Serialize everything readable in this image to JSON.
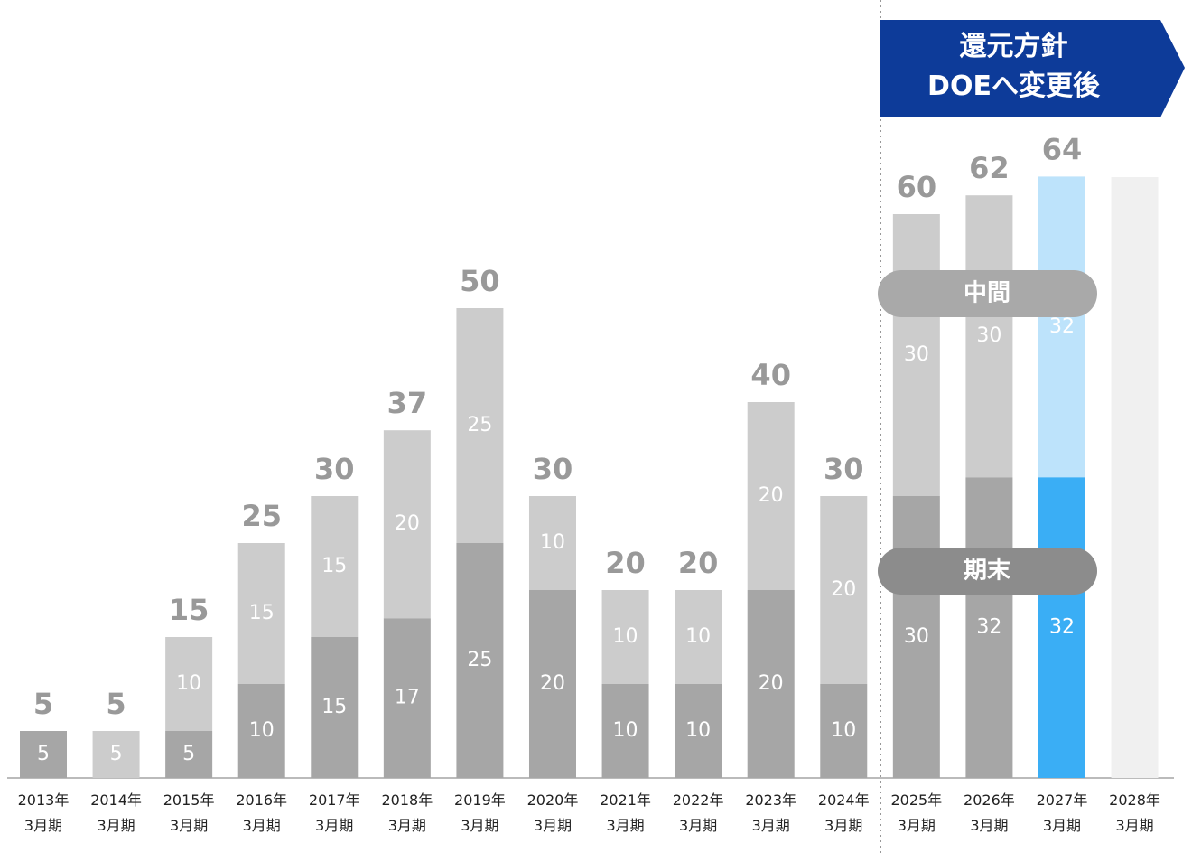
{
  "chart_data": {
    "type": "stacked-bar",
    "categories": [
      "2013年\n3月期",
      "2014年\n3月期",
      "2015年\n3月期",
      "2016年\n3月期",
      "2017年\n3月期",
      "2018年\n3月期",
      "2019年\n3月期",
      "2020年\n3月期",
      "2021年\n3月期",
      "2022年\n3月期",
      "2023年\n3月期",
      "2024年\n3月期",
      "2025年\n3月期",
      "2026年\n3月期",
      "2027年\n3月期",
      "2028年\n3月期"
    ],
    "series": [
      {
        "name": "期末",
        "color": "#a6a6a6",
        "values": [
          5,
          null,
          5,
          10,
          15,
          17,
          25,
          20,
          10,
          10,
          20,
          10,
          30,
          32,
          32,
          null
        ],
        "colors": [
          "#a6a6a6",
          "#a6a6a6",
          "#a6a6a6",
          "#a6a6a6",
          "#a6a6a6",
          "#a6a6a6",
          "#a6a6a6",
          "#a6a6a6",
          "#a6a6a6",
          "#a6a6a6",
          "#a6a6a6",
          "#a6a6a6",
          "#a6a6a6",
          "#a6a6a6",
          "#3aaef5",
          "#a6a6a6"
        ]
      },
      {
        "name": "中間",
        "color": "#cccccc",
        "values": [
          null,
          5,
          10,
          15,
          15,
          20,
          25,
          10,
          10,
          10,
          20,
          20,
          30,
          30,
          32,
          null
        ],
        "colors": [
          "#cccccc",
          "#cccccc",
          "#cccccc",
          "#cccccc",
          "#cccccc",
          "#cccccc",
          "#cccccc",
          "#cccccc",
          "#cccccc",
          "#cccccc",
          "#cccccc",
          "#cccccc",
          "#cccccc",
          "#cccccc",
          "#bde3fb",
          "#cccccc"
        ]
      }
    ],
    "totals": [
      5,
      5,
      15,
      25,
      30,
      37,
      50,
      30,
      20,
      20,
      40,
      30,
      60,
      62,
      64,
      null
    ],
    "annotation": "還元方針\nDOEへ変更後",
    "ylim": [
      0,
      80
    ]
  }
}
